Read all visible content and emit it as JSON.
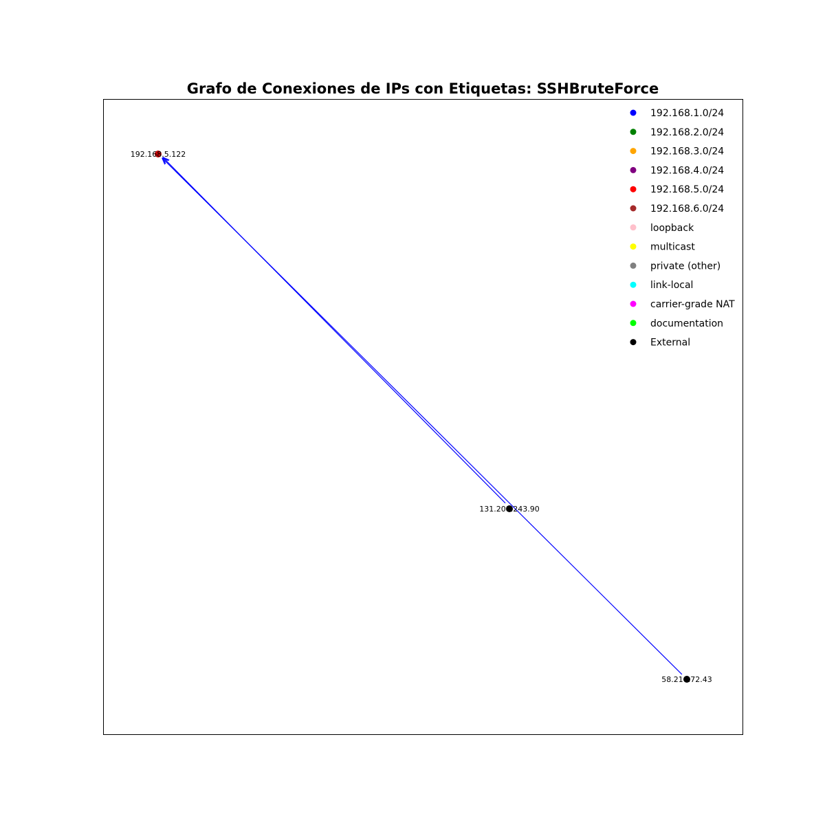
{
  "chart": {
    "title": "Grafo de Conexiones de IPs con Etiquetas: SSHBruteForce"
  },
  "legend": {
    "items": [
      {
        "label": "192.168.1.0/24",
        "color": "#0000ff"
      },
      {
        "label": "192.168.2.0/24",
        "color": "#008000"
      },
      {
        "label": "192.168.3.0/24",
        "color": "#ffa500"
      },
      {
        "label": "192.168.4.0/24",
        "color": "#800080"
      },
      {
        "label": "192.168.5.0/24",
        "color": "#ff0000"
      },
      {
        "label": "192.168.6.0/24",
        "color": "#a52a2a"
      },
      {
        "label": "loopback",
        "color": "#ffc0cb"
      },
      {
        "label": "multicast",
        "color": "#ffff00"
      },
      {
        "label": "private (other)",
        "color": "#808080"
      },
      {
        "label": "link-local",
        "color": "#00ffff"
      },
      {
        "label": "carrier-grade NAT",
        "color": "#ff00ff"
      },
      {
        "label": "documentation",
        "color": "#00ff00"
      },
      {
        "label": "External",
        "color": "#000000"
      }
    ]
  },
  "graph": {
    "nodes": [
      {
        "id": "192.168.5.122",
        "label": "192.168.5.122",
        "category": "192.168.5.0/24",
        "color": "#cc0000"
      },
      {
        "id": "131.208.243.90",
        "label": "131.208.243.90",
        "category": "External",
        "color": "#000000"
      },
      {
        "id": "58.210.72.43",
        "label": "58.210.72.43",
        "category": "External",
        "color": "#000000"
      }
    ],
    "edges": [
      {
        "source": "131.208.243.90",
        "target": "192.168.5.122",
        "color": "#0000ff",
        "directed": true
      },
      {
        "source": "58.210.72.43",
        "target": "192.168.5.122",
        "color": "#0000ff",
        "directed": true
      }
    ]
  }
}
